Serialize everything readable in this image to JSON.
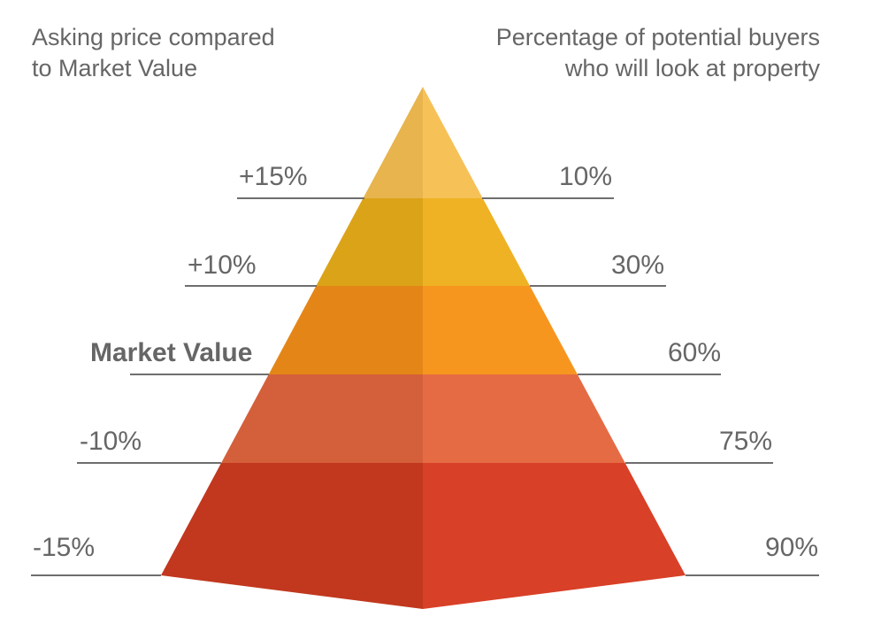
{
  "headers": {
    "left": [
      "Asking price compared",
      "to Market Value"
    ],
    "right": [
      "Percentage of potential buyers",
      "who will look at property"
    ]
  },
  "tiers": [
    {
      "asking": "+15%",
      "buyers": "10%",
      "highlight": false,
      "left_face": "#e8b44e",
      "right_face": "#f6c157"
    },
    {
      "asking": "+10%",
      "buyers": "30%",
      "highlight": false,
      "left_face": "#dba318",
      "right_face": "#efb224"
    },
    {
      "asking": "Market Value",
      "buyers": "60%",
      "highlight": true,
      "left_face": "#e48617",
      "right_face": "#f7961f"
    },
    {
      "asking": "-10%",
      "buyers": "75%",
      "highlight": false,
      "left_face": "#d45f3b",
      "right_face": "#e56b44"
    },
    {
      "asking": "-15%",
      "buyers": "90%",
      "highlight": false,
      "left_face": "#c1381e",
      "right_face": "#d84027"
    }
  ],
  "colors": {
    "text": "#666666",
    "highlight": "#cf3f22",
    "rule": "#6e6e6e"
  }
}
